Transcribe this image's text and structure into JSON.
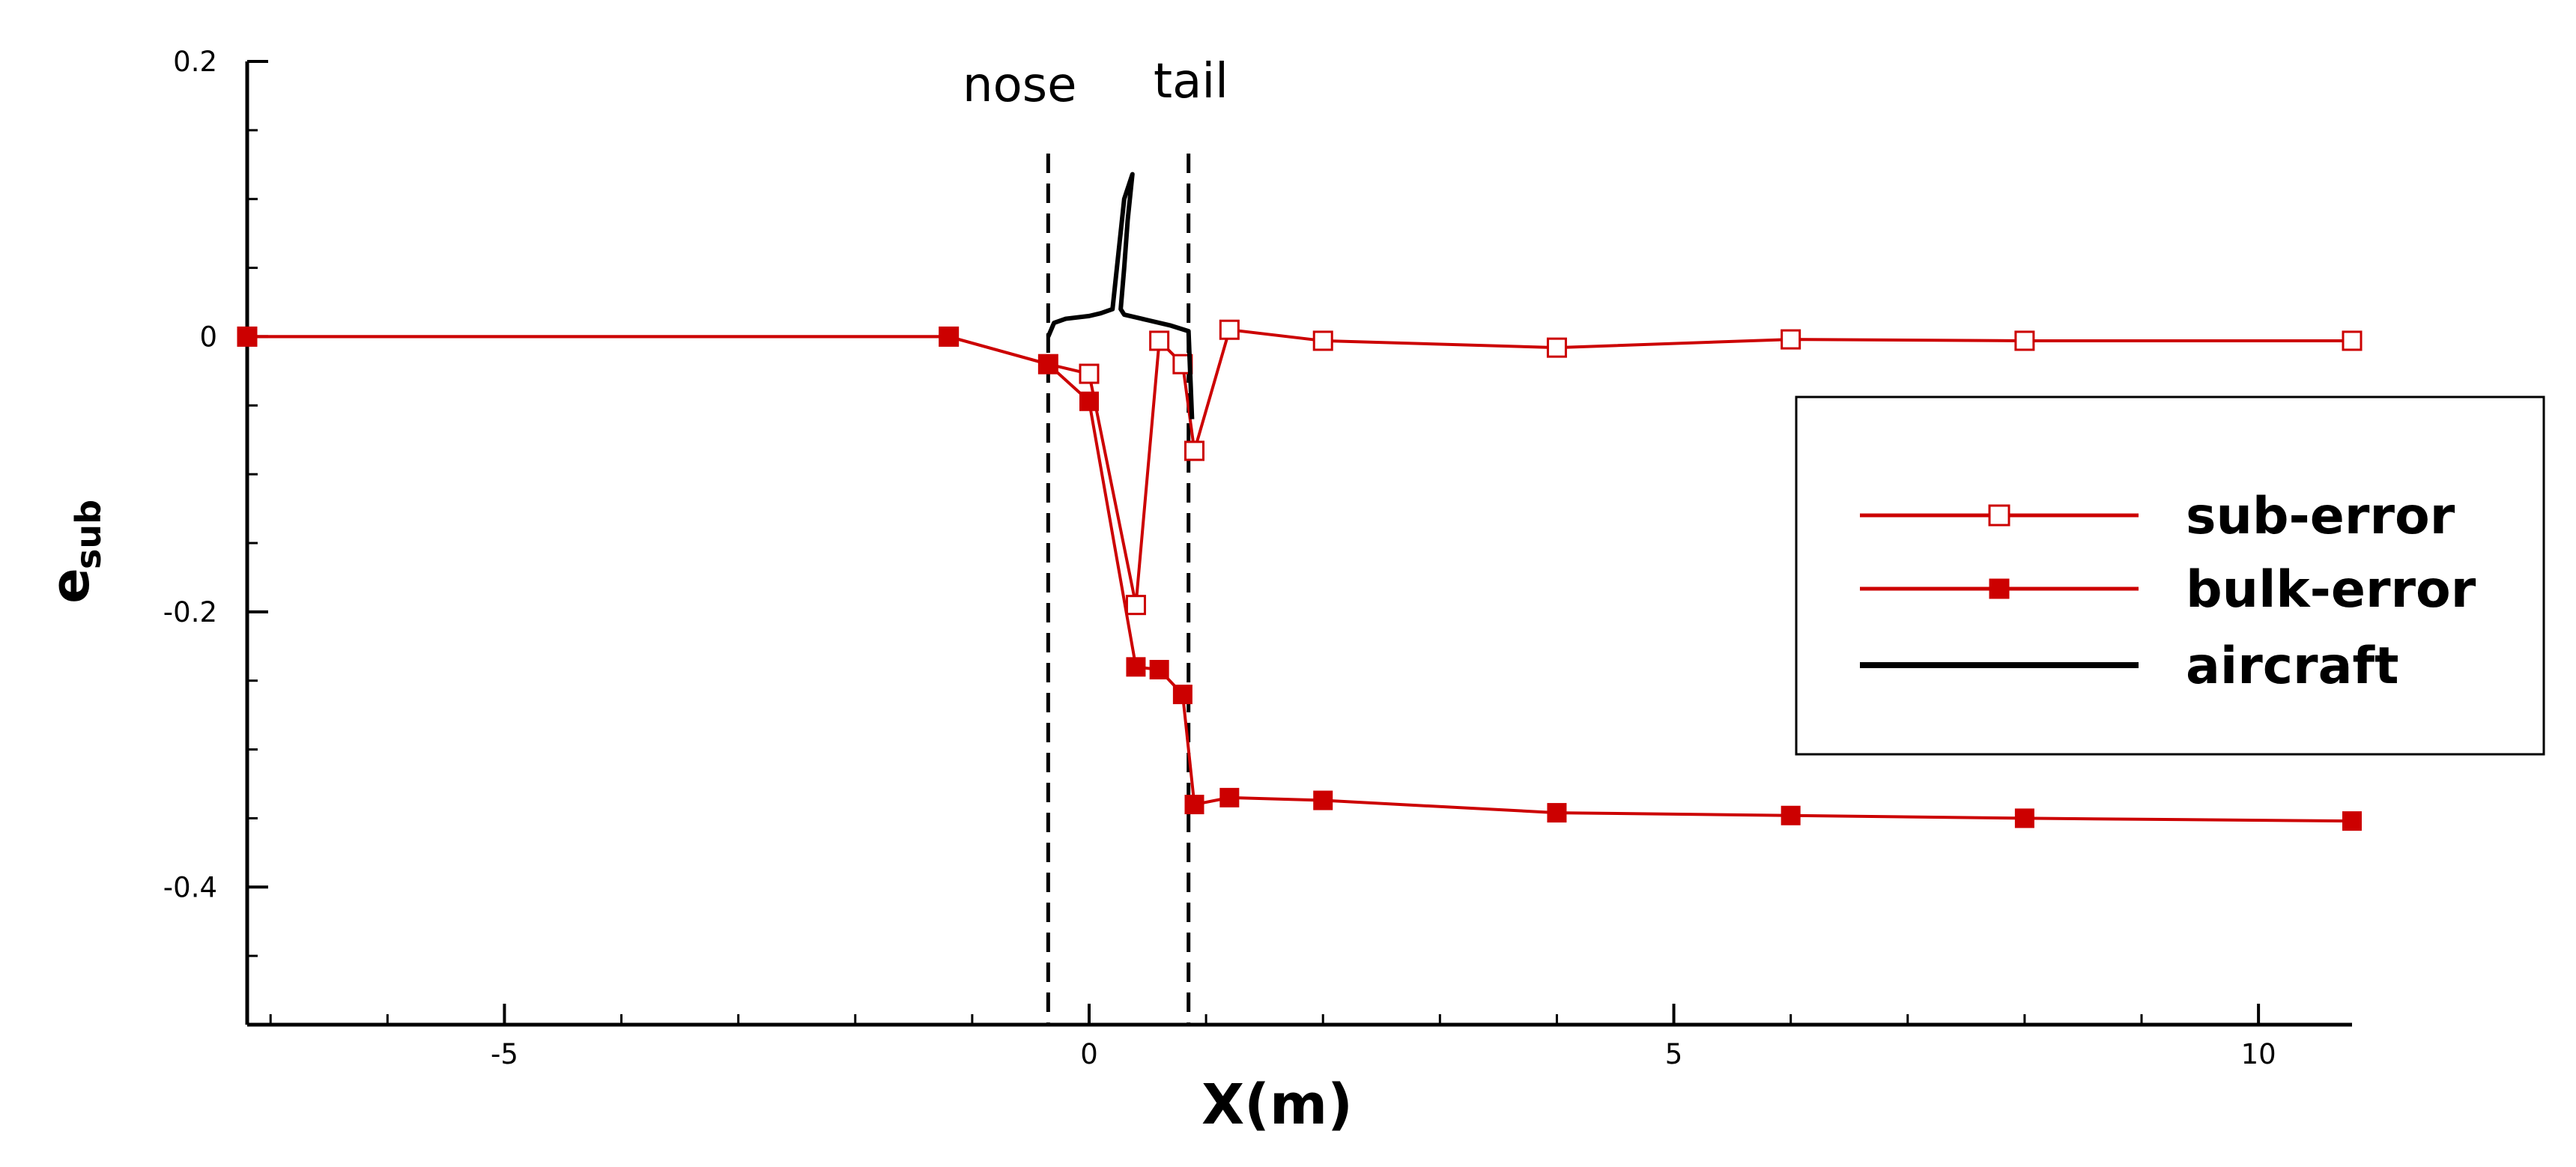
{
  "chart_data": {
    "type": "line",
    "xlabel": "X(m)",
    "ylabel": "e",
    "ylabel_sub": "sub",
    "xlim": [
      -7.2,
      10.8
    ],
    "ylim": [
      -0.5,
      0.2
    ],
    "x_ticks": [
      {
        "value": -5,
        "label": "-5"
      },
      {
        "value": 0,
        "label": "0"
      },
      {
        "value": 5,
        "label": "5"
      },
      {
        "value": 10,
        "label": "10"
      }
    ],
    "y_ticks": [
      {
        "value": 0.2,
        "label": "0.2"
      },
      {
        "value": 0,
        "label": "0"
      },
      {
        "value": -0.2,
        "label": "-0.2"
      },
      {
        "value": -0.4,
        "label": "-0.4"
      }
    ],
    "x_minor_step": 1,
    "y_minor_step": 0.05,
    "grid": false,
    "legend_position": "right",
    "annotations": [
      {
        "text": "nose",
        "x": -0.35
      },
      {
        "text": "tail",
        "x": 0.85
      }
    ],
    "series": [
      {
        "name": "sub-error",
        "color": "#cc0000",
        "marker": "open-square",
        "points": [
          [
            -7.2,
            0.0
          ],
          [
            -1.2,
            0.0
          ],
          [
            -0.35,
            -0.02
          ],
          [
            0.0,
            -0.027
          ],
          [
            0.4,
            -0.195
          ],
          [
            0.6,
            -0.003
          ],
          [
            0.8,
            -0.02
          ],
          [
            0.9,
            -0.083
          ],
          [
            1.2,
            0.005
          ],
          [
            2.0,
            -0.003
          ],
          [
            4.0,
            -0.008
          ],
          [
            6.0,
            -0.002
          ],
          [
            8.0,
            -0.003
          ],
          [
            10.8,
            -0.003
          ]
        ]
      },
      {
        "name": "bulk-error",
        "color": "#cc0000",
        "marker": "filled-square",
        "points": [
          [
            -7.2,
            0.0
          ],
          [
            -1.2,
            0.0
          ],
          [
            -0.35,
            -0.02
          ],
          [
            0.0,
            -0.047
          ],
          [
            0.4,
            -0.24
          ],
          [
            0.6,
            -0.242
          ],
          [
            0.8,
            -0.26
          ],
          [
            0.9,
            -0.34
          ],
          [
            1.2,
            -0.335
          ],
          [
            2.0,
            -0.337
          ],
          [
            4.0,
            -0.346
          ],
          [
            6.0,
            -0.348
          ],
          [
            8.0,
            -0.35
          ],
          [
            10.8,
            -0.352
          ]
        ]
      },
      {
        "name": "aircraft",
        "color": "#000000",
        "marker": "none",
        "points": [
          [
            -0.35,
            0.0
          ],
          [
            -0.3,
            0.01
          ],
          [
            -0.2,
            0.013
          ],
          [
            0.0,
            0.015
          ],
          [
            0.1,
            0.017
          ],
          [
            0.2,
            0.02
          ],
          [
            0.25,
            0.06
          ],
          [
            0.3,
            0.1
          ],
          [
            0.37,
            0.118
          ],
          [
            0.33,
            0.085
          ],
          [
            0.3,
            0.05
          ],
          [
            0.27,
            0.02
          ],
          [
            0.3,
            0.016
          ],
          [
            0.5,
            0.012
          ],
          [
            0.7,
            0.008
          ],
          [
            0.85,
            0.004
          ],
          [
            0.88,
            -0.06
          ]
        ]
      }
    ],
    "vlines": [
      {
        "x": -0.35,
        "style": "dashed"
      },
      {
        "x": 0.85,
        "style": "dashed"
      }
    ]
  }
}
